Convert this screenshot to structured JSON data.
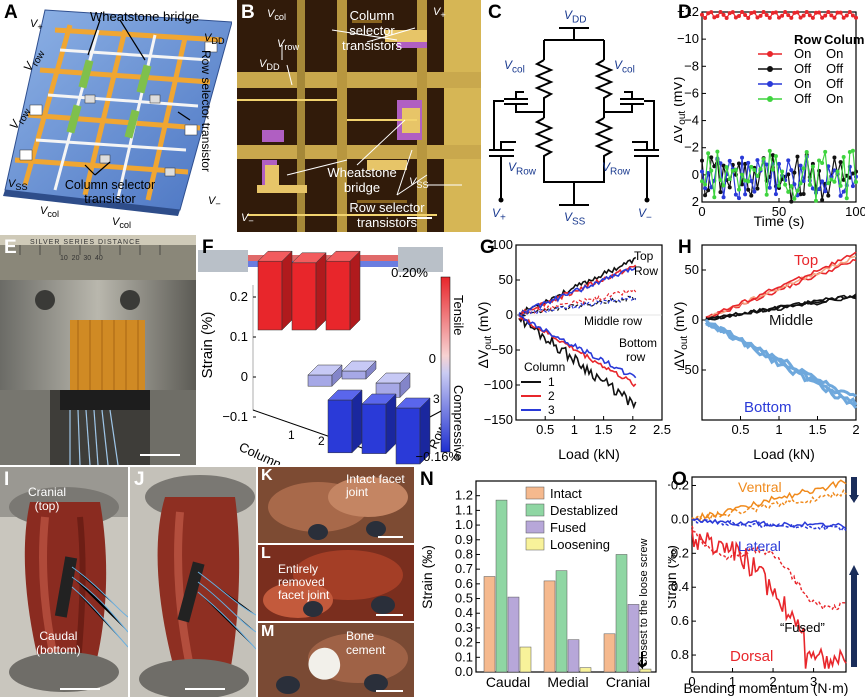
{
  "panel_labels": {
    "A": "A",
    "B": "B",
    "C": "C",
    "D": "D",
    "E": "E",
    "F": "F",
    "G": "G",
    "H": "H",
    "I": "I",
    "J": "J",
    "K": "K",
    "L": "L",
    "M": "M",
    "N": "N",
    "O": "O"
  },
  "panelA": {
    "wheatstone": "Wheatstone bridge",
    "row_selector": "Row selector transistor",
    "column_selector": "Column selector transistor",
    "vrow": "V",
    "vrow_sub": "row",
    "vdd": "V",
    "vdd_sub": "DD",
    "vss": "V",
    "vss_sub": "SS",
    "vcol": "V",
    "vcol_sub": "col",
    "vplus": "V",
    "vplus_sub": "+",
    "vminus": "V",
    "vminus_sub": "−"
  },
  "panelB": {
    "column_selector": "Column selector transistors",
    "wheatstone": "Wheatstone bridge",
    "row_selector": "Row selector transistors",
    "vcol": "V",
    "vcol_sub": "col",
    "vrow": "V",
    "vrow_sub": "row",
    "vdd": "V",
    "vdd_sub": "DD",
    "vss": "V",
    "vss_sub": "SS",
    "vplus": "V",
    "vplus_sub": "+",
    "vminus": "V",
    "vminus_sub": "−"
  },
  "panelC": {
    "vdd": "V",
    "vdd_sub": "DD",
    "vss": "V",
    "vss_sub": "SS",
    "vcol": "V",
    "vcol_sub": "col",
    "vrow": "V",
    "vrow_sub": "Row",
    "vplus": "V",
    "vplus_sub": "+",
    "vminus": "V",
    "vminus_sub": "−"
  },
  "panelE": {
    "ruler": "SILVER SERIES DISTANCE",
    "ruler_nums": "10  20  30  40"
  },
  "panelF": {
    "legend_title_top": "Tensile",
    "legend_title_bottom": "Compressive",
    "legend_pos": "0.20%",
    "legend_zero": "0",
    "legend_neg": "−0.16%"
  },
  "panelI": {
    "cranial": "Cranial",
    "cranial2": "(top)",
    "caudal": "Caudal",
    "caudal2": "(bottom)"
  },
  "panelK": {
    "label": "Intact facet joint"
  },
  "panelL": {
    "label1": "Entirely",
    "label2": "removed",
    "label3": "facet joint"
  },
  "panelM": {
    "label": "Bone cement"
  },
  "chart_data": [
    {
      "id": "D",
      "type": "line",
      "xlabel": "Time (s)",
      "ylabel": "ΔV",
      "ylabel_sub": "out",
      "ylabel_unit": " (mV)",
      "xlim": [
        0,
        100
      ],
      "ylim": [
        -12,
        2
      ],
      "y_inverted": true,
      "xticks": [
        0,
        50,
        100
      ],
      "yticks": [
        -12,
        -10,
        -8,
        -6,
        -4,
        -2,
        0,
        2
      ],
      "legend_header": [
        "Row",
        "Column"
      ],
      "series": [
        {
          "row": "On",
          "column": "On",
          "color": "#e8262b",
          "mean": -11.8,
          "amp": 0.25
        },
        {
          "row": "Off",
          "column": "Off",
          "color": "#111111",
          "mean": 0.3,
          "amp": 1.8
        },
        {
          "row": "On",
          "column": "Off",
          "color": "#2a3ad8",
          "mean": 0.2,
          "amp": 1.6
        },
        {
          "row": "Off",
          "column": "On",
          "color": "#3fd43f",
          "mean": 0.1,
          "amp": 1.9
        }
      ]
    },
    {
      "id": "F",
      "type": "bar3d",
      "ylabel": "Strain (%)",
      "xlabel": "Column",
      "zlabel": "Row",
      "zlim": [
        -0.1,
        0.2
      ],
      "zticks": [
        0.2,
        0.1,
        0,
        -0.1
      ],
      "rows": [
        "1",
        "2",
        "3"
      ],
      "columns": [
        "1",
        "2",
        "3"
      ],
      "values": [
        [
          0.19,
          0.185,
          0.19
        ],
        [
          -0.01,
          0.0,
          -0.02
        ],
        [
          -0.14,
          -0.13,
          -0.15
        ]
      ]
    },
    {
      "id": "G",
      "type": "line",
      "xlabel": "Load (kN)",
      "ylabel": "ΔV",
      "ylabel_sub": "out",
      "ylabel_unit": " (mV)",
      "xlim": [
        0,
        2.5
      ],
      "ylim": [
        -150,
        100
      ],
      "xticks": [
        0.5,
        1.0,
        1.5,
        2.0,
        2.5
      ],
      "yticks": [
        100,
        50,
        0,
        -50,
        -100,
        -150
      ],
      "legend_title": "Column",
      "legend_names": [
        "1",
        "2",
        "3"
      ],
      "annotations": [
        "Top",
        "Row",
        "Middle row",
        "Bottom",
        "row"
      ],
      "series": [
        {
          "name": "1",
          "group": "top",
          "color": "#111111",
          "end": 80
        },
        {
          "name": "2",
          "group": "top",
          "color": "#e8262b",
          "end": 70
        },
        {
          "name": "3",
          "group": "top",
          "color": "#2a3ad8",
          "end": 68
        },
        {
          "name": "1",
          "group": "middle",
          "color": "#111111",
          "end": 25
        },
        {
          "name": "2",
          "group": "middle",
          "color": "#e8262b",
          "end": 35
        },
        {
          "name": "3",
          "group": "middle",
          "color": "#2a3ad8",
          "end": 25
        },
        {
          "name": "1",
          "group": "bottom",
          "color": "#111111",
          "end": -130
        },
        {
          "name": "2",
          "group": "bottom",
          "color": "#e8262b",
          "end": -100
        },
        {
          "name": "3",
          "group": "bottom",
          "color": "#2a3ad8",
          "end": -90
        }
      ]
    },
    {
      "id": "H",
      "type": "line",
      "xlabel": "Load (kN)",
      "ylabel": "ΔV",
      "ylabel_sub": "out",
      "ylabel_unit": " (mV)",
      "xlim": [
        0,
        2.0
      ],
      "ylim": [
        -100,
        75
      ],
      "xticks": [
        0.5,
        1.0,
        1.5,
        2.0
      ],
      "yticks": [
        50,
        0,
        -50
      ],
      "series": [
        {
          "name": "Top",
          "color": "#e8262b",
          "end": 65
        },
        {
          "name": "Middle",
          "color": "#111111",
          "end": 25
        },
        {
          "name": "Bottom",
          "color": "#2a3ad8",
          "end": -85
        }
      ]
    },
    {
      "id": "N",
      "type": "bar",
      "ylabel": "Strain (‰)",
      "categories": [
        "Caudal",
        "Medial",
        "Cranial"
      ],
      "ylim": [
        0,
        1.3
      ],
      "yticks": [
        0.0,
        0.1,
        0.2,
        0.3,
        0.4,
        0.5,
        0.6,
        0.7,
        0.8,
        0.9,
        1.0,
        1.1,
        1.2
      ],
      "annotation": "Closest to the loose screw",
      "series": [
        {
          "name": "Intact",
          "color": "#f5b98e",
          "values": [
            0.65,
            0.62,
            0.26
          ]
        },
        {
          "name": "Destablized",
          "color": "#8fd6a3",
          "values": [
            1.17,
            0.69,
            0.8
          ]
        },
        {
          "name": "Fused",
          "color": "#b7a7d9",
          "values": [
            0.51,
            0.22,
            0.46
          ]
        },
        {
          "name": "Loosening",
          "color": "#f8f29a",
          "values": [
            0.17,
            0.03,
            0.02
          ]
        }
      ]
    },
    {
      "id": "O",
      "type": "line",
      "xlabel": "Bending momentum (N·m)",
      "ylabel": "Strain (‰)",
      "xlim": [
        0,
        3.8
      ],
      "ylim": [
        -0.25,
        0.9
      ],
      "y_inverted": true,
      "xticks": [
        0,
        1,
        2,
        3
      ],
      "yticks": [
        -0.2,
        0.0,
        0.2,
        0.4,
        0.6,
        0.8
      ],
      "annotations": [
        "Ventral",
        "Lateral",
        "“Fused”",
        "Dorsal"
      ],
      "series": [
        {
          "name": "Ventral",
          "color": "#f08a1c"
        },
        {
          "name": "Lateral",
          "color": "#2a3ad8"
        },
        {
          "name": "Dorsal",
          "color": "#e8262b"
        }
      ]
    }
  ]
}
